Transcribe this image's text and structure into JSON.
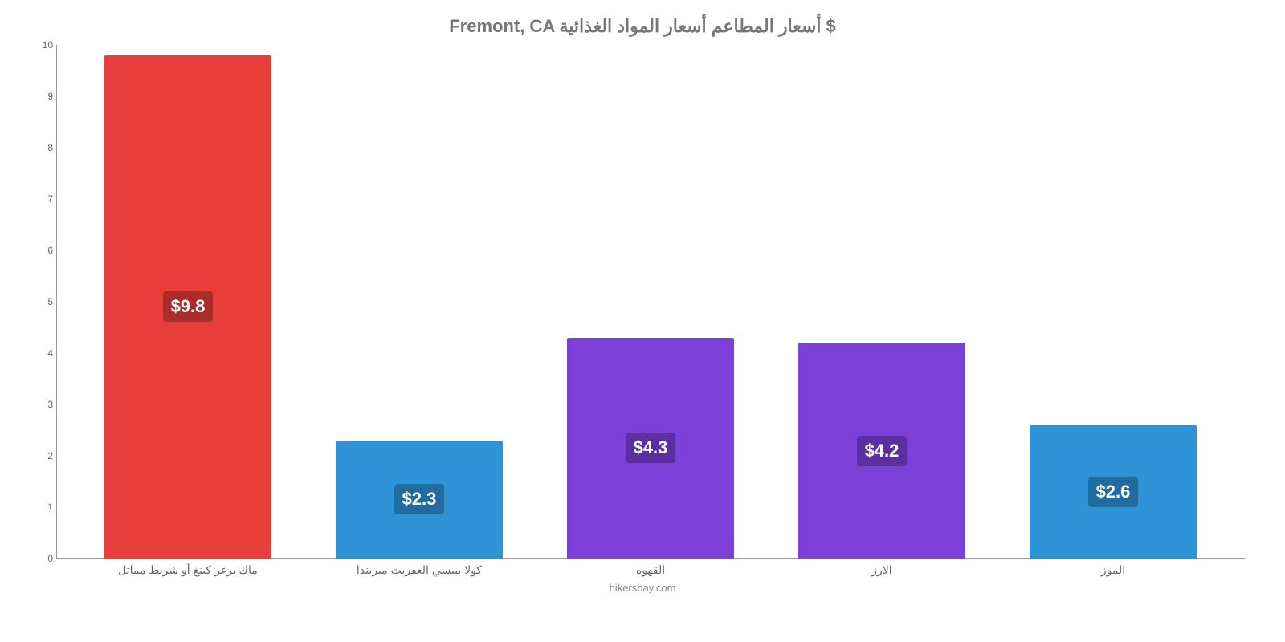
{
  "chart": {
    "type": "bar",
    "title": "Fremont, CA أسعار المطاعم أسعار المواد الغذائية $",
    "title_fontsize": 22,
    "title_color": "#777777",
    "credit": "hikersbay.com",
    "background_color": "#ffffff",
    "axis_color": "#999999",
    "tick_label_color": "#666666",
    "tick_fontsize": 12,
    "xlabel_fontsize": 14,
    "ylim": [
      0,
      10
    ],
    "ytick_step": 1,
    "yticks": [
      "0",
      "1",
      "2",
      "3",
      "4",
      "5",
      "6",
      "7",
      "8",
      "9",
      "10"
    ],
    "bar_width_pct": 72,
    "value_label_fontsize": 22,
    "value_label_text_color": "#ffffff",
    "categories": [
      "ماك برغر كينغ أو شريط مماثل",
      "كولا بيبسي العفريت ميريندا",
      "القهوه",
      "الارز",
      "الموز"
    ],
    "values": [
      9.8,
      2.3,
      4.3,
      4.2,
      2.6
    ],
    "value_labels": [
      "$9.8",
      "$2.3",
      "$4.3",
      "$4.2",
      "$2.6"
    ],
    "bar_colors": [
      "#e83f3a",
      "#2e93d7",
      "#7c3fd8",
      "#7c3fd8",
      "#2e93d7"
    ],
    "value_label_bg_colors": [
      "#a92d2b",
      "#216b9e",
      "#5b2fa0",
      "#5b2fa0",
      "#216b9e"
    ]
  }
}
